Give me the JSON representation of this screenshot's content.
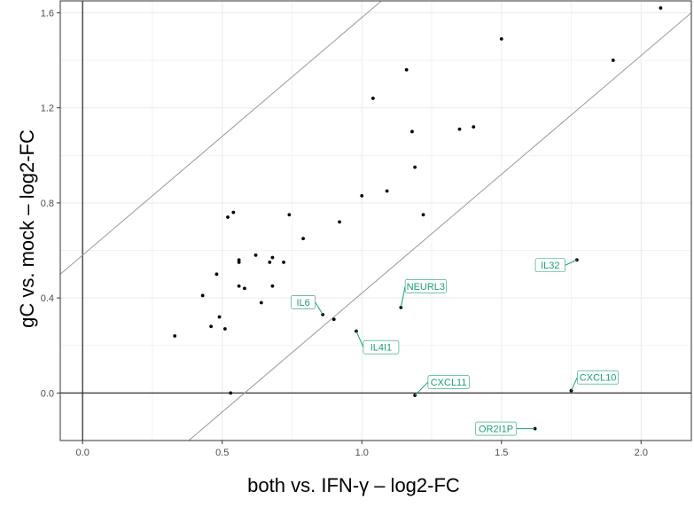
{
  "chart_data": {
    "type": "scatter",
    "xlabel": "both vs. IFN-γ – log2-FC",
    "ylabel": "gC vs. mock – log2-FC",
    "xlim": [
      -0.08,
      2.18
    ],
    "ylim": [
      -0.2,
      1.65
    ],
    "x_ticks": [
      0.0,
      0.5,
      1.0,
      1.5,
      2.0
    ],
    "x_tick_labels": [
      "0.0",
      "0.5",
      "1.0",
      "1.5",
      "2.0"
    ],
    "y_ticks": [
      0.0,
      0.4,
      0.8,
      1.2,
      1.6
    ],
    "y_tick_labels": [
      "0.0",
      "0.4",
      "0.8",
      "1.2",
      "1.6"
    ],
    "grid": true,
    "reference_lines": [
      {
        "kind": "vertical",
        "x": 0
      },
      {
        "kind": "horizontal",
        "y": 0
      },
      {
        "kind": "diagonal",
        "slope": 1,
        "intercept": 0.58
      },
      {
        "kind": "diagonal",
        "slope": 1,
        "intercept": -0.58
      }
    ],
    "points": [
      {
        "x": 0.33,
        "y": 0.24
      },
      {
        "x": 0.43,
        "y": 0.41
      },
      {
        "x": 0.46,
        "y": 0.28
      },
      {
        "x": 0.48,
        "y": 0.5
      },
      {
        "x": 0.49,
        "y": 0.32
      },
      {
        "x": 0.51,
        "y": 0.27
      },
      {
        "x": 0.52,
        "y": 0.74
      },
      {
        "x": 0.54,
        "y": 0.76
      },
      {
        "x": 0.56,
        "y": 0.56
      },
      {
        "x": 0.56,
        "y": 0.55
      },
      {
        "x": 0.56,
        "y": 0.45
      },
      {
        "x": 0.58,
        "y": 0.44
      },
      {
        "x": 0.62,
        "y": 0.58
      },
      {
        "x": 0.64,
        "y": 0.38
      },
      {
        "x": 0.67,
        "y": 0.55
      },
      {
        "x": 0.68,
        "y": 0.57
      },
      {
        "x": 0.68,
        "y": 0.45
      },
      {
        "x": 0.72,
        "y": 0.55
      },
      {
        "x": 0.74,
        "y": 0.75
      },
      {
        "x": 0.79,
        "y": 0.65
      },
      {
        "x": 0.92,
        "y": 0.72
      },
      {
        "x": 1.0,
        "y": 0.83
      },
      {
        "x": 1.04,
        "y": 1.24
      },
      {
        "x": 1.09,
        "y": 0.85
      },
      {
        "x": 1.16,
        "y": 1.36
      },
      {
        "x": 1.18,
        "y": 1.1
      },
      {
        "x": 1.19,
        "y": 0.95
      },
      {
        "x": 1.22,
        "y": 0.75
      },
      {
        "x": 1.35,
        "y": 1.11
      },
      {
        "x": 1.4,
        "y": 1.12
      },
      {
        "x": 1.5,
        "y": 1.49
      },
      {
        "x": 1.9,
        "y": 1.4
      },
      {
        "x": 2.07,
        "y": 1.62
      },
      {
        "x": 0.53,
        "y": 0.0
      }
    ],
    "labeled_points": [
      {
        "label": "IL6",
        "x": 0.86,
        "y": 0.33
      },
      {
        "label": "",
        "x": 0.9,
        "y": 0.31
      },
      {
        "label": "IL4I1",
        "x": 0.98,
        "y": 0.26
      },
      {
        "label": "NEURL3",
        "x": 1.14,
        "y": 0.36
      },
      {
        "label": "IL32",
        "x": 1.77,
        "y": 0.56
      },
      {
        "label": "CXCL11",
        "x": 1.19,
        "y": -0.01
      },
      {
        "label": "CXCL10",
        "x": 1.75,
        "y": 0.01
      },
      {
        "label": "OR2I1P",
        "x": 1.62,
        "y": -0.15
      }
    ],
    "label_color": "#1b9e77",
    "grid_color": "#ebebeb",
    "point_color": "#000000"
  }
}
